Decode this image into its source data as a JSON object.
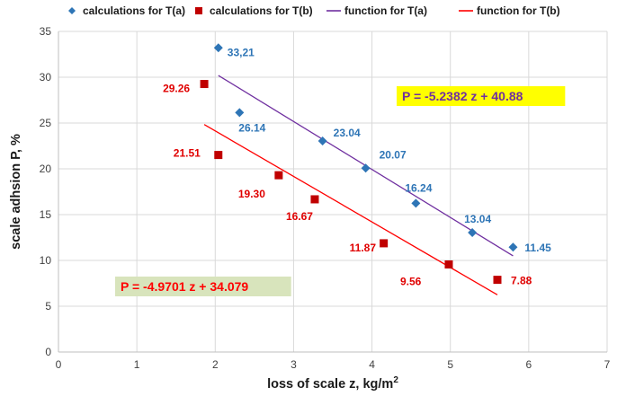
{
  "chart_data": {
    "type": "scatter",
    "title": "",
    "xlabel": "loss of scale z, kg/m",
    "xlabel_sup": "2",
    "ylabel": "scale adhsion P, %",
    "xlim": [
      0,
      7
    ],
    "ylim": [
      0,
      35
    ],
    "xticks": [
      "0",
      "1",
      "2",
      "3",
      "4",
      "5",
      "6",
      "7"
    ],
    "yticks": [
      "0",
      "5",
      "10",
      "15",
      "20",
      "25",
      "30",
      "35"
    ],
    "grid": true,
    "legend_position": "top",
    "series": [
      {
        "name": "calculations for T(a)",
        "kind": "points",
        "marker": "diamond",
        "color": "#2E75B6",
        "label_color": "#2E75B6",
        "x": [
          2.04,
          2.31,
          3.37,
          3.92,
          4.56,
          5.28,
          5.8
        ],
        "y": [
          33.21,
          26.14,
          23.04,
          20.07,
          16.24,
          13.04,
          11.45
        ],
        "labels": [
          "33,21",
          "26.14",
          "23.04",
          "20.07",
          "16.24",
          "13.04",
          "11.45"
        ]
      },
      {
        "name": "calculations for T(b)",
        "kind": "points",
        "marker": "square",
        "color": "#C00000",
        "label_color": "#E00000",
        "x": [
          1.86,
          2.04,
          2.81,
          3.27,
          4.15,
          4.98,
          5.6
        ],
        "y": [
          29.26,
          21.51,
          19.3,
          16.67,
          11.87,
          9.56,
          7.88
        ],
        "labels": [
          "29.26",
          "21.51",
          "19.30",
          "16.67",
          "11.87",
          "9.56",
          "7.88"
        ]
      },
      {
        "name": "function for T(a)",
        "kind": "line",
        "color": "#7030A0",
        "slope": -5.2382,
        "intercept": 40.88,
        "x_range": [
          2.04,
          5.8
        ]
      },
      {
        "name": "function for T(b)",
        "kind": "line",
        "color": "#FF0000",
        "slope": -4.9701,
        "intercept": 34.079,
        "x_range": [
          1.86,
          5.6
        ]
      }
    ],
    "annotations": [
      {
        "text": "P = -5.2382 z + 40.88",
        "color": "#7030A0",
        "background": "#FFFF00",
        "near_series": "function for T(a)"
      },
      {
        "text": "P = -4.9701 z + 34.079",
        "color": "#FF0000",
        "background": "#D8E4BC",
        "near_series": "function for T(b)"
      }
    ]
  }
}
